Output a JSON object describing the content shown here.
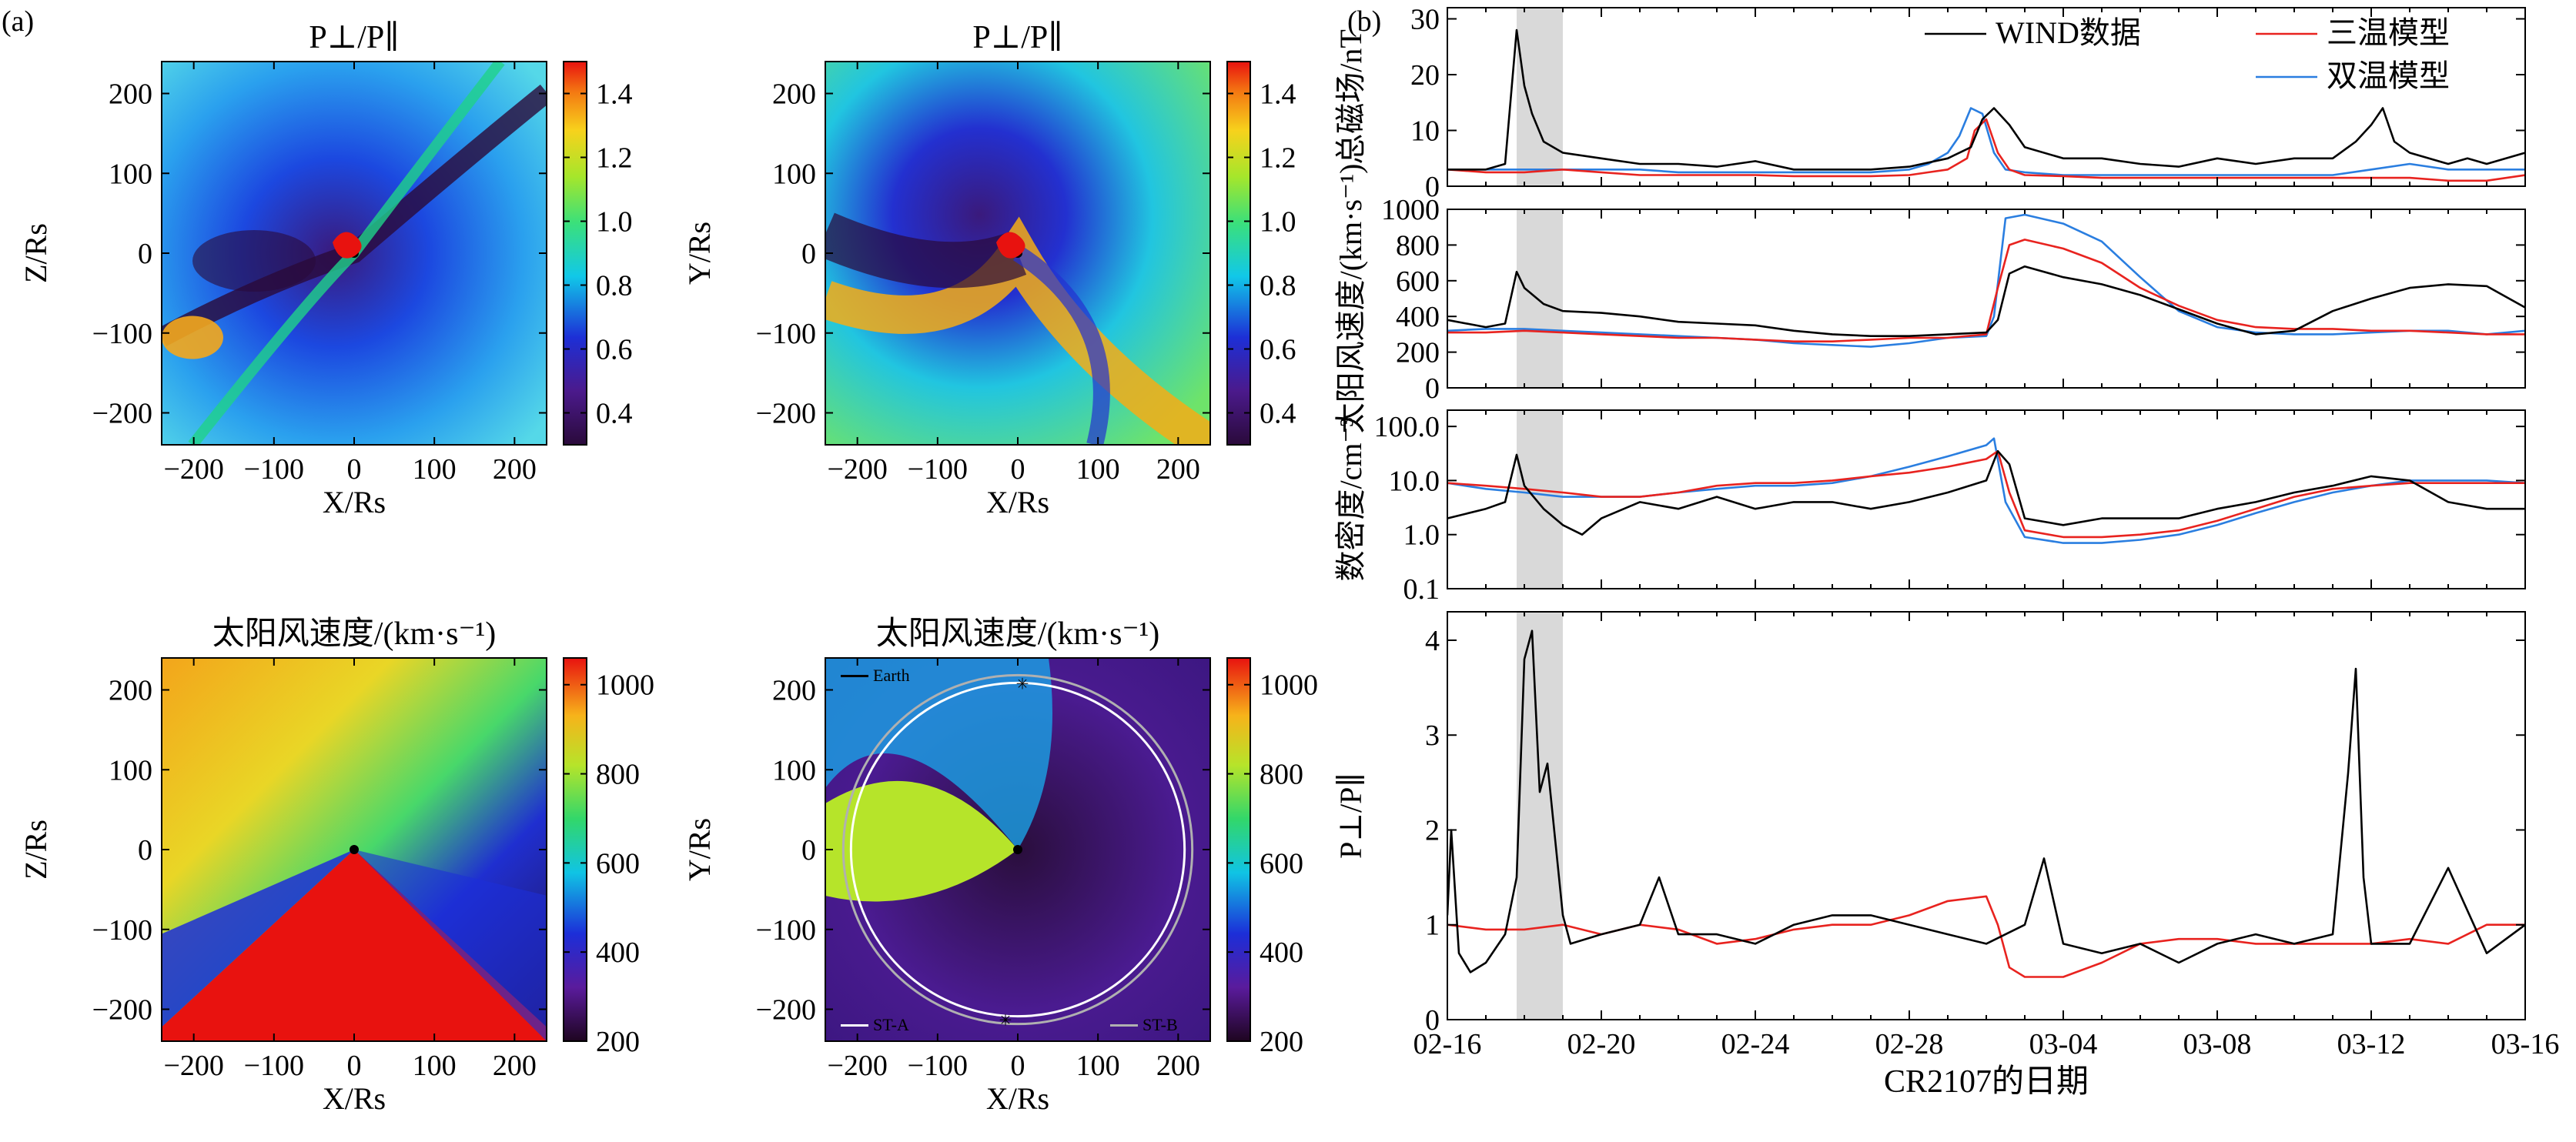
{
  "panel_labels": {
    "a": "(a)",
    "b": "(b)"
  },
  "colors": {
    "wind": "#000000",
    "three_temp": "#e8231f",
    "two_temp": "#2a7ee0",
    "shade": "#d9d9d9"
  },
  "chart_data": [
    {
      "type": "heatmap",
      "title": "P⊥/P∥",
      "xlabel": "X/Rs",
      "ylabel": "Z/Rs",
      "xlim": [
        -240,
        240
      ],
      "ylim": [
        -240,
        240
      ],
      "xticks": [
        "−200",
        "−100",
        "0",
        "100",
        "200"
      ],
      "yticks": [
        "−200",
        "−100",
        "0",
        "100",
        "200"
      ],
      "colorbar": {
        "range": [
          0.3,
          1.5
        ],
        "ticks": [
          "0.4",
          "0.6",
          "0.8",
          "1.0",
          "1.2",
          "1.4"
        ]
      }
    },
    {
      "type": "heatmap",
      "title": "P⊥/P∥",
      "xlabel": "X/Rs",
      "ylabel": "Y/Rs",
      "xlim": [
        -240,
        240
      ],
      "ylim": [
        -240,
        240
      ],
      "xticks": [
        "−200",
        "−100",
        "0",
        "100",
        "200"
      ],
      "yticks": [
        "−200",
        "−100",
        "0",
        "100",
        "200"
      ],
      "colorbar": {
        "range": [
          0.3,
          1.5
        ],
        "ticks": [
          "0.4",
          "0.6",
          "0.8",
          "1.0",
          "1.2",
          "1.4"
        ]
      }
    },
    {
      "type": "heatmap",
      "title": "太阳风速度/(km·s⁻¹)",
      "xlabel": "X/Rs",
      "ylabel": "Z/Rs",
      "xlim": [
        -240,
        240
      ],
      "ylim": [
        -240,
        240
      ],
      "xticks": [
        "−200",
        "−100",
        "0",
        "100",
        "200"
      ],
      "yticks": [
        "−200",
        "−100",
        "0",
        "100",
        "200"
      ],
      "colorbar": {
        "range": [
          200,
          1060
        ],
        "ticks": [
          "200",
          "400",
          "600",
          "800",
          "1000"
        ]
      }
    },
    {
      "type": "heatmap",
      "title": "太阳风速度/(km·s⁻¹)",
      "xlabel": "X/Rs",
      "ylabel": "Y/Rs",
      "xlim": [
        -240,
        240
      ],
      "ylim": [
        -240,
        240
      ],
      "xticks": [
        "−200",
        "−100",
        "0",
        "100",
        "200"
      ],
      "yticks": [
        "−200",
        "−100",
        "0",
        "100",
        "200"
      ],
      "colorbar": {
        "range": [
          200,
          1060
        ],
        "ticks": [
          "200",
          "400",
          "600",
          "800",
          "1000"
        ]
      },
      "legend": [
        "Earth",
        "ST-A",
        "ST-B"
      ]
    },
    {
      "type": "line",
      "ylabel": "总磁场/nT",
      "xlim": [
        0,
        28
      ],
      "ylim": [
        0,
        32
      ],
      "yticks": [
        "0",
        "10",
        "20",
        "30"
      ],
      "legend": [
        "WIND数据",
        "三温模型",
        "双温模型"
      ],
      "series": [
        {
          "name": "WIND数据",
          "x": [
            0,
            1,
            1.5,
            1.8,
            2,
            2.2,
            2.5,
            3,
            4,
            5,
            6,
            7,
            8,
            9,
            10,
            11,
            12,
            13,
            13.6,
            13.9,
            14.2,
            14.6,
            15,
            16,
            17,
            18,
            19,
            20,
            21,
            22,
            23,
            23.6,
            24,
            24.3,
            24.6,
            25,
            26,
            26.5,
            27,
            28
          ],
          "y": [
            3,
            3,
            4,
            28,
            18,
            13,
            8,
            6,
            5,
            4,
            4,
            3.5,
            4.5,
            3,
            3,
            3,
            3.5,
            5,
            7,
            12,
            14,
            11,
            7,
            5,
            5,
            4,
            3.5,
            5,
            4,
            5,
            5,
            8,
            11,
            14,
            8,
            6,
            4,
            5,
            4,
            6
          ]
        },
        {
          "name": "三温模型",
          "x": [
            0,
            1,
            2,
            3,
            4,
            5,
            6,
            7,
            8,
            9,
            10,
            11,
            12,
            12.5,
            13,
            13.5,
            13.7,
            14,
            14.3,
            14.6,
            15,
            16,
            17,
            18,
            19,
            20,
            21,
            22,
            23,
            24,
            25,
            26,
            27,
            28
          ],
          "y": [
            3,
            2.5,
            2.5,
            3,
            2.5,
            2,
            2,
            2,
            2,
            1.8,
            1.8,
            1.8,
            2,
            2.5,
            3,
            5,
            10,
            12,
            6,
            3,
            2,
            1.8,
            1.5,
            1.5,
            1.5,
            1.5,
            1.5,
            1.5,
            1.5,
            1.5,
            1.5,
            1,
            1,
            2
          ]
        },
        {
          "name": "双温模型",
          "x": [
            0,
            1,
            2,
            3,
            4,
            5,
            6,
            7,
            8,
            9,
            10,
            11,
            12,
            12.5,
            13,
            13.3,
            13.6,
            13.9,
            14.2,
            14.5,
            15,
            16,
            17,
            18,
            19,
            20,
            21,
            22,
            23,
            24,
            25,
            26,
            27,
            28
          ],
          "y": [
            3,
            3,
            3,
            3,
            3,
            3,
            2.5,
            2.5,
            2.5,
            2.5,
            2.5,
            2.5,
            3,
            4,
            6,
            9,
            14,
            13,
            6,
            3,
            2.5,
            2,
            2,
            2,
            2,
            2,
            2,
            2,
            2,
            3,
            4,
            3,
            3,
            3
          ]
        }
      ]
    },
    {
      "type": "line",
      "ylabel": "太阳风速度/(km·s⁻¹)",
      "xlim": [
        0,
        28
      ],
      "ylim": [
        0,
        1000
      ],
      "yticks": [
        "0",
        "200",
        "400",
        "600",
        "800",
        "1000"
      ],
      "series": [
        {
          "name": "WIND数据",
          "x": [
            0,
            1,
            1.5,
            1.8,
            2,
            2.5,
            3,
            4,
            5,
            6,
            7,
            8,
            9,
            10,
            11,
            12,
            13,
            14,
            14.3,
            14.6,
            15,
            16,
            17,
            18,
            19,
            20,
            21,
            22,
            23,
            24,
            25,
            26,
            27,
            28
          ],
          "y": [
            380,
            340,
            360,
            650,
            560,
            470,
            430,
            420,
            400,
            370,
            360,
            350,
            320,
            300,
            290,
            290,
            300,
            310,
            380,
            640,
            680,
            620,
            580,
            520,
            440,
            360,
            300,
            320,
            430,
            500,
            560,
            580,
            570,
            450
          ]
        },
        {
          "name": "三温模型",
          "x": [
            0,
            1,
            2,
            3,
            4,
            5,
            6,
            7,
            8,
            9,
            10,
            11,
            12,
            13,
            14,
            14.3,
            14.6,
            15,
            16,
            17,
            18,
            19,
            20,
            21,
            22,
            23,
            24,
            25,
            26,
            27,
            28
          ],
          "y": [
            310,
            310,
            320,
            310,
            300,
            290,
            280,
            280,
            270,
            260,
            260,
            270,
            280,
            280,
            300,
            560,
            800,
            830,
            780,
            700,
            560,
            460,
            380,
            340,
            330,
            330,
            320,
            320,
            310,
            300,
            300
          ]
        },
        {
          "name": "双温模型",
          "x": [
            0,
            1,
            2,
            3,
            4,
            5,
            6,
            7,
            8,
            9,
            10,
            11,
            12,
            13,
            14,
            14.2,
            14.5,
            15,
            16,
            17,
            18,
            19,
            20,
            21,
            22,
            23,
            24,
            25,
            26,
            27,
            28
          ],
          "y": [
            320,
            330,
            330,
            320,
            310,
            300,
            290,
            280,
            270,
            250,
            240,
            230,
            250,
            280,
            290,
            400,
            950,
            970,
            920,
            820,
            620,
            430,
            340,
            310,
            300,
            300,
            310,
            320,
            320,
            300,
            320
          ]
        }
      ]
    },
    {
      "type": "line",
      "ylabel": "数密度/cm⁻³",
      "yscale": "log",
      "xlim": [
        0,
        28
      ],
      "ylim": [
        0.1,
        200
      ],
      "yticks": [
        "0.1",
        "1.0",
        "10.0",
        "100.0"
      ],
      "series": [
        {
          "name": "WIND数据",
          "x": [
            0,
            1,
            1.5,
            1.8,
            2,
            2.5,
            3,
            3.5,
            4,
            5,
            6,
            7,
            8,
            9,
            10,
            11,
            12,
            13,
            14,
            14.3,
            14.6,
            15,
            16,
            17,
            18,
            19,
            20,
            21,
            22,
            23,
            24,
            25,
            26,
            27,
            28
          ],
          "y": [
            2,
            3,
            4,
            30,
            8,
            3,
            1.5,
            1,
            2,
            4,
            3,
            5,
            3,
            4,
            4,
            3,
            4,
            6,
            10,
            35,
            20,
            2,
            1.5,
            2,
            2,
            2,
            3,
            4,
            6,
            8,
            12,
            10,
            4,
            3,
            3
          ]
        },
        {
          "name": "三温模型",
          "x": [
            0,
            1,
            2,
            3,
            4,
            5,
            6,
            7,
            8,
            9,
            10,
            11,
            12,
            13,
            14,
            14.3,
            14.6,
            15,
            16,
            17,
            18,
            19,
            20,
            21,
            22,
            23,
            24,
            25,
            26,
            27,
            28
          ],
          "y": [
            9,
            8,
            7,
            6,
            5,
            5,
            6,
            8,
            9,
            9,
            10,
            12,
            14,
            18,
            25,
            35,
            6,
            1.2,
            0.9,
            0.9,
            1,
            1.2,
            1.8,
            3,
            5,
            7,
            8,
            9,
            9,
            9,
            9
          ]
        },
        {
          "name": "双温模型",
          "x": [
            0,
            1,
            2,
            3,
            4,
            5,
            6,
            7,
            8,
            9,
            10,
            11,
            12,
            13,
            14,
            14.2,
            14.5,
            15,
            16,
            17,
            18,
            19,
            20,
            21,
            22,
            23,
            24,
            25,
            26,
            27,
            28
          ],
          "y": [
            9,
            7,
            6,
            5,
            5,
            5,
            6,
            7,
            8,
            8,
            9,
            12,
            18,
            28,
            45,
            60,
            4,
            0.9,
            0.7,
            0.7,
            0.8,
            1,
            1.5,
            2.5,
            4,
            6,
            8,
            10,
            10,
            10,
            9
          ]
        }
      ]
    },
    {
      "type": "line",
      "ylabel": "P⊥/P∥",
      "xlabel": "CR2107的日期",
      "xlim": [
        0,
        28
      ],
      "ylim": [
        0,
        4.3
      ],
      "yticks": [
        "0",
        "1",
        "2",
        "3",
        "4"
      ],
      "xticks": [
        "02-16",
        "02-20",
        "02-24",
        "02-28",
        "03-04",
        "03-08",
        "03-12",
        "03-16"
      ],
      "shaded_interval": [
        1.8,
        3.0
      ],
      "series": [
        {
          "name": "WIND数据",
          "x": [
            0,
            0.1,
            0.3,
            0.6,
            1,
            1.5,
            1.8,
            2,
            2.2,
            2.4,
            2.6,
            2.8,
            3,
            3.2,
            4,
            5,
            5.5,
            6,
            7,
            8,
            9,
            10,
            11,
            12,
            13,
            14,
            15,
            15.5,
            16,
            17,
            18,
            19,
            20,
            21,
            22,
            23,
            23.4,
            23.6,
            23.8,
            24,
            25,
            26,
            27,
            28
          ],
          "y": [
            1.1,
            2,
            0.7,
            0.5,
            0.6,
            0.9,
            1.5,
            3.8,
            4.1,
            2.4,
            2.7,
            1.9,
            1.1,
            0.8,
            0.9,
            1.0,
            1.5,
            0.9,
            0.9,
            0.8,
            1.0,
            1.1,
            1.1,
            1.0,
            0.9,
            0.8,
            1.0,
            1.7,
            0.8,
            0.7,
            0.8,
            0.6,
            0.8,
            0.9,
            0.8,
            0.9,
            2.6,
            3.7,
            1.5,
            0.8,
            0.8,
            1.6,
            0.7,
            1.0
          ]
        },
        {
          "name": "三温模型",
          "x": [
            0,
            1,
            2,
            3,
            4,
            5,
            6,
            7,
            8,
            9,
            10,
            11,
            12,
            13,
            14,
            14.3,
            14.6,
            15,
            16,
            17,
            18,
            19,
            20,
            21,
            22,
            23,
            24,
            25,
            26,
            27,
            28
          ],
          "y": [
            1.0,
            0.95,
            0.95,
            1.0,
            0.9,
            1.0,
            0.95,
            0.8,
            0.85,
            0.95,
            1.0,
            1.0,
            1.1,
            1.25,
            1.3,
            1.0,
            0.55,
            0.45,
            0.45,
            0.6,
            0.8,
            0.85,
            0.85,
            0.8,
            0.8,
            0.8,
            0.8,
            0.85,
            0.8,
            1.0,
            1.0
          ]
        }
      ]
    }
  ]
}
